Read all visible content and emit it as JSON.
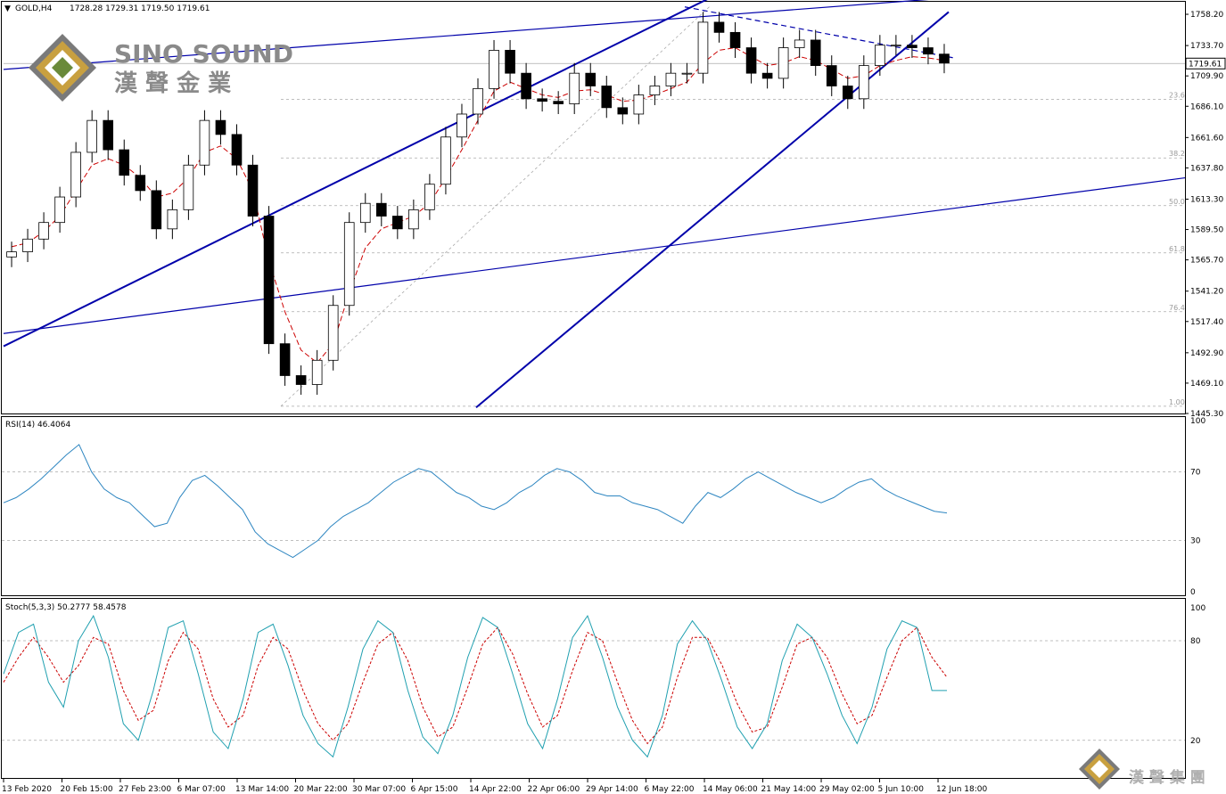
{
  "header": {
    "symbol": "GOLD,H4",
    "ohlc": "1728.28 1729.31 1719.50 1719.61"
  },
  "brand": {
    "name": "SINO SOUND",
    "chinese": "漢 聲 金 業",
    "corner_text": "漢 聲 集 團"
  },
  "colors": {
    "candle": "#000000",
    "ma": "#cc0000",
    "trendline": "#0000aa",
    "rsi": "#2e86c1",
    "stoch_main": "#20a0b0",
    "stoch_signal": "#cc0000",
    "level": "#aaaaaa",
    "logo_gold": "#c8a040",
    "logo_gray": "#7a7a7a"
  },
  "chart_data": [
    {
      "type": "candlestick",
      "title": "GOLD,H4",
      "y_ticks": [
        "1758.20",
        "1733.70",
        "1709.90",
        "1686.10",
        "1661.60",
        "1637.80",
        "1613.30",
        "1589.50",
        "1565.70",
        "1541.20",
        "1517.40",
        "1492.90",
        "1469.10",
        "1445.30"
      ],
      "ylim": [
        1445.3,
        1768.0
      ],
      "current_price": "1719.61",
      "x_ticks": [
        "13 Feb 2020",
        "20 Feb 15:00",
        "27 Feb 23:00",
        "6 Mar 07:00",
        "13 Mar 14:00",
        "20 Mar 22:00",
        "30 Mar 07:00",
        "6 Apr 15:00",
        "14 Apr 22:00",
        "22 Apr 06:00",
        "29 Apr 14:00",
        "6 May 22:00",
        "14 May 06:00",
        "21 May 14:00",
        "29 May 02:00",
        "5 Jun 10:00",
        "12 Jun 18:00"
      ],
      "series": [
        {
          "name": "",
          "values": [
            1572,
            1582,
            1595,
            1615,
            1650,
            1675,
            1652,
            1632,
            1620,
            1590,
            1605,
            1640,
            1675,
            1664,
            1640,
            1600,
            1500,
            1475,
            1468,
            1487,
            1530,
            1595,
            1610,
            1600,
            1590,
            1605,
            1625,
            1662,
            1680,
            1700,
            1730,
            1712,
            1692,
            1690,
            1688,
            1712,
            1702,
            1685,
            1680,
            1695,
            1702,
            1712,
            1712,
            1752,
            1744,
            1732,
            1712,
            1708,
            1732,
            1738,
            1718,
            1702,
            1692,
            1718,
            1734,
            1734,
            1732,
            1727,
            1720
          ]
        },
        {
          "name": "",
          "values": [
            1576,
            1579,
            1588,
            1600,
            1620,
            1640,
            1645,
            1640,
            1630,
            1615,
            1618,
            1630,
            1650,
            1655,
            1645,
            1620,
            1565,
            1525,
            1495,
            1485,
            1500,
            1540,
            1575,
            1590,
            1595,
            1600,
            1610,
            1630,
            1652,
            1675,
            1698,
            1705,
            1700,
            1695,
            1693,
            1698,
            1699,
            1695,
            1690,
            1691,
            1695,
            1700,
            1705,
            1720,
            1730,
            1732,
            1725,
            1718,
            1720,
            1725,
            1722,
            1715,
            1708,
            1710,
            1718,
            1722,
            1725,
            1724,
            1722
          ]
        }
      ],
      "fib_levels": [
        {
          "label": "23.6",
          "price": 1691.5
        },
        {
          "label": "38.2",
          "price": 1645.6
        },
        {
          "label": "50.0",
          "price": 1608.2
        },
        {
          "label": "61.8",
          "price": 1571.2
        },
        {
          "label": "76.4",
          "price": 1525.1
        },
        {
          "label": "1.00",
          "price": 1451.0
        }
      ],
      "trendlines": [
        {
          "name": "channel-upper",
          "from": [
            0.0,
            1498
          ],
          "to": [
            0.6,
            1772
          ]
        },
        {
          "name": "channel-lower",
          "from": [
            0.4,
            1450
          ],
          "to": [
            0.8,
            1760
          ]
        },
        {
          "name": "long-lower",
          "from": [
            0.0,
            1508
          ],
          "to": [
            1.0,
            1630
          ]
        },
        {
          "name": "long-upper",
          "from": [
            0.0,
            1715
          ],
          "to": [
            1.0,
            1785
          ]
        }
      ]
    },
    {
      "type": "line",
      "title": "RSI(14) 46.4064",
      "y_ticks": [
        "100",
        "70",
        "30",
        "0"
      ],
      "ylim": [
        0,
        100
      ],
      "series": [
        {
          "name": "",
          "values": [
            52,
            55,
            60,
            66,
            73,
            80,
            86,
            70,
            60,
            55,
            52,
            45,
            38,
            40,
            55,
            65,
            68,
            62,
            55,
            48,
            35,
            28,
            24,
            20,
            25,
            30,
            38,
            44,
            48,
            52,
            58,
            64,
            68,
            72,
            70,
            64,
            58,
            55,
            50,
            48,
            52,
            58,
            62,
            68,
            72,
            70,
            65,
            58,
            56,
            56,
            52,
            50,
            48,
            44,
            40,
            50,
            58,
            55,
            60,
            66,
            70,
            66,
            62,
            58,
            55,
            52,
            55,
            60,
            64,
            66,
            60,
            56,
            53,
            50,
            47,
            46
          ]
        }
      ]
    },
    {
      "type": "line",
      "title": "Stoch(5,3,3) 50.2777 58.4578",
      "y_ticks": [
        "100",
        "80",
        "20"
      ],
      "ylim": [
        0,
        100
      ],
      "series": [
        {
          "name": "",
          "values": [
            60,
            85,
            90,
            55,
            40,
            80,
            95,
            70,
            30,
            20,
            50,
            88,
            92,
            60,
            25,
            15,
            45,
            85,
            90,
            65,
            35,
            18,
            10,
            40,
            75,
            92,
            85,
            50,
            22,
            12,
            35,
            70,
            94,
            88,
            60,
            30,
            15,
            45,
            82,
            95,
            70,
            40,
            20,
            10,
            35,
            78,
            92,
            80,
            55,
            28,
            15,
            30,
            68,
            90,
            82,
            60,
            35,
            18,
            40,
            75,
            92,
            88,
            50,
            50
          ]
        },
        {
          "name": "",
          "values": [
            55,
            70,
            82,
            70,
            55,
            65,
            82,
            78,
            50,
            32,
            38,
            68,
            85,
            75,
            45,
            28,
            35,
            65,
            82,
            75,
            50,
            30,
            20,
            30,
            55,
            78,
            85,
            68,
            40,
            22,
            28,
            52,
            78,
            88,
            72,
            48,
            28,
            35,
            62,
            85,
            80,
            55,
            32,
            18,
            28,
            58,
            82,
            82,
            65,
            42,
            25,
            28,
            52,
            78,
            82,
            70,
            48,
            30,
            35,
            58,
            80,
            88,
            70,
            58
          ]
        }
      ]
    }
  ]
}
